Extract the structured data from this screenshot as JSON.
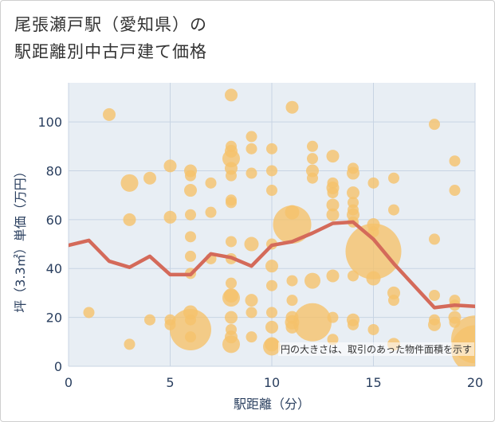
{
  "title_line1": "尾張瀬戸駅（愛知県）の",
  "title_line2": "駅距離別中古戸建て価格",
  "note": "円の大きさは、取引のあった物件面積を示す",
  "colors": {
    "bubble": "#f5c26b",
    "line": "#d46a5a",
    "grid": "#c8d4e3",
    "plot_bg": "#e8eef4"
  },
  "chart_data": {
    "type": "scatter",
    "xlabel": "駅距離（分）",
    "ylabel": "坪（3.3㎡）単価（万円）",
    "xlim": [
      0,
      20
    ],
    "ylim": [
      0,
      116
    ],
    "xticks": [
      0,
      5,
      10,
      15,
      20
    ],
    "yticks": [
      0,
      20,
      40,
      60,
      80,
      100
    ],
    "xtick_labels": [
      "0",
      "5",
      "10",
      "15",
      "20"
    ],
    "ytick_labels": [
      "0",
      "20",
      "40",
      "60",
      "80",
      "100"
    ],
    "points": [
      {
        "x": 1,
        "y": 22,
        "s": 7
      },
      {
        "x": 2,
        "y": 103,
        "s": 8
      },
      {
        "x": 3,
        "y": 75,
        "s": 11
      },
      {
        "x": 3,
        "y": 60,
        "s": 8
      },
      {
        "x": 3,
        "y": 9,
        "s": 7
      },
      {
        "x": 4,
        "y": 77,
        "s": 8
      },
      {
        "x": 4,
        "y": 19,
        "s": 7
      },
      {
        "x": 5,
        "y": 82,
        "s": 8
      },
      {
        "x": 5,
        "y": 61,
        "s": 8
      },
      {
        "x": 5,
        "y": 19,
        "s": 7
      },
      {
        "x": 5,
        "y": 17,
        "s": 7
      },
      {
        "x": 6,
        "y": 80,
        "s": 8
      },
      {
        "x": 6,
        "y": 78,
        "s": 7
      },
      {
        "x": 6,
        "y": 72,
        "s": 8
      },
      {
        "x": 6,
        "y": 62,
        "s": 7
      },
      {
        "x": 6,
        "y": 53,
        "s": 7
      },
      {
        "x": 6,
        "y": 45,
        "s": 7
      },
      {
        "x": 6,
        "y": 38,
        "s": 7
      },
      {
        "x": 6,
        "y": 22,
        "s": 9
      },
      {
        "x": 6,
        "y": 19,
        "s": 7
      },
      {
        "x": 6,
        "y": 15,
        "s": 26
      },
      {
        "x": 6,
        "y": 12,
        "s": 7
      },
      {
        "x": 7,
        "y": 75,
        "s": 7
      },
      {
        "x": 7,
        "y": 63,
        "s": 7
      },
      {
        "x": 7,
        "y": 44,
        "s": 7
      },
      {
        "x": 8,
        "y": 111,
        "s": 8
      },
      {
        "x": 8,
        "y": 90,
        "s": 7
      },
      {
        "x": 8,
        "y": 88,
        "s": 8
      },
      {
        "x": 8,
        "y": 85,
        "s": 11
      },
      {
        "x": 8,
        "y": 81,
        "s": 8
      },
      {
        "x": 8,
        "y": 78,
        "s": 7
      },
      {
        "x": 8,
        "y": 68,
        "s": 7
      },
      {
        "x": 8,
        "y": 67,
        "s": 7
      },
      {
        "x": 8,
        "y": 51,
        "s": 7
      },
      {
        "x": 8,
        "y": 44,
        "s": 7
      },
      {
        "x": 8,
        "y": 34,
        "s": 7
      },
      {
        "x": 8,
        "y": 29,
        "s": 9
      },
      {
        "x": 8,
        "y": 28,
        "s": 11
      },
      {
        "x": 8,
        "y": 20,
        "s": 8
      },
      {
        "x": 8,
        "y": 15,
        "s": 7
      },
      {
        "x": 8,
        "y": 12,
        "s": 8
      },
      {
        "x": 8,
        "y": 9,
        "s": 11
      },
      {
        "x": 9,
        "y": 94,
        "s": 7
      },
      {
        "x": 9,
        "y": 89,
        "s": 7
      },
      {
        "x": 9,
        "y": 79,
        "s": 7
      },
      {
        "x": 9,
        "y": 50,
        "s": 9
      },
      {
        "x": 9,
        "y": 27,
        "s": 8
      },
      {
        "x": 9,
        "y": 22,
        "s": 7
      },
      {
        "x": 9,
        "y": 12,
        "s": 7
      },
      {
        "x": 10,
        "y": 89,
        "s": 7
      },
      {
        "x": 10,
        "y": 80,
        "s": 7
      },
      {
        "x": 10,
        "y": 72,
        "s": 7
      },
      {
        "x": 10,
        "y": 50,
        "s": 7
      },
      {
        "x": 10,
        "y": 41,
        "s": 8
      },
      {
        "x": 10,
        "y": 33,
        "s": 7
      },
      {
        "x": 10,
        "y": 22,
        "s": 7
      },
      {
        "x": 10,
        "y": 16,
        "s": 8
      },
      {
        "x": 10,
        "y": 9,
        "s": 9
      },
      {
        "x": 10,
        "y": 8,
        "s": 11
      },
      {
        "x": 11,
        "y": 106,
        "s": 8
      },
      {
        "x": 11,
        "y": 63,
        "s": 9
      },
      {
        "x": 11,
        "y": 58,
        "s": 24
      },
      {
        "x": 11,
        "y": 35,
        "s": 7
      },
      {
        "x": 11,
        "y": 27,
        "s": 7
      },
      {
        "x": 11,
        "y": 20,
        "s": 8
      },
      {
        "x": 11,
        "y": 18,
        "s": 9
      },
      {
        "x": 11,
        "y": 16,
        "s": 8
      },
      {
        "x": 12,
        "y": 90,
        "s": 7
      },
      {
        "x": 12,
        "y": 85,
        "s": 7
      },
      {
        "x": 12,
        "y": 80,
        "s": 8
      },
      {
        "x": 12,
        "y": 77,
        "s": 7
      },
      {
        "x": 12,
        "y": 35,
        "s": 10
      },
      {
        "x": 12,
        "y": 18,
        "s": 24
      },
      {
        "x": 13,
        "y": 86,
        "s": 8
      },
      {
        "x": 13,
        "y": 75,
        "s": 7
      },
      {
        "x": 13,
        "y": 73,
        "s": 8
      },
      {
        "x": 13,
        "y": 71,
        "s": 7
      },
      {
        "x": 13,
        "y": 66,
        "s": 8
      },
      {
        "x": 13,
        "y": 62,
        "s": 8
      },
      {
        "x": 13,
        "y": 37,
        "s": 8
      },
      {
        "x": 13,
        "y": 20,
        "s": 7
      },
      {
        "x": 13,
        "y": 11,
        "s": 7
      },
      {
        "x": 14,
        "y": 81,
        "s": 7
      },
      {
        "x": 14,
        "y": 79,
        "s": 8
      },
      {
        "x": 14,
        "y": 71,
        "s": 8
      },
      {
        "x": 14,
        "y": 67,
        "s": 7
      },
      {
        "x": 14,
        "y": 64,
        "s": 7
      },
      {
        "x": 14,
        "y": 62,
        "s": 8
      },
      {
        "x": 14,
        "y": 59,
        "s": 7
      },
      {
        "x": 14,
        "y": 37,
        "s": 7
      },
      {
        "x": 14,
        "y": 19,
        "s": 8
      },
      {
        "x": 14,
        "y": 17,
        "s": 7
      },
      {
        "x": 15,
        "y": 75,
        "s": 7
      },
      {
        "x": 15,
        "y": 58,
        "s": 8
      },
      {
        "x": 15,
        "y": 55,
        "s": 7
      },
      {
        "x": 15,
        "y": 47,
        "s": 35
      },
      {
        "x": 15,
        "y": 36,
        "s": 9
      },
      {
        "x": 15,
        "y": 15,
        "s": 7
      },
      {
        "x": 16,
        "y": 77,
        "s": 7
      },
      {
        "x": 16,
        "y": 64,
        "s": 7
      },
      {
        "x": 16,
        "y": 30,
        "s": 8
      },
      {
        "x": 16,
        "y": 27,
        "s": 7
      },
      {
        "x": 16,
        "y": 9,
        "s": 8
      },
      {
        "x": 18,
        "y": 99,
        "s": 7
      },
      {
        "x": 18,
        "y": 52,
        "s": 7
      },
      {
        "x": 18,
        "y": 29,
        "s": 7
      },
      {
        "x": 18,
        "y": 19,
        "s": 7
      },
      {
        "x": 18,
        "y": 17,
        "s": 8
      },
      {
        "x": 19,
        "y": 84,
        "s": 7
      },
      {
        "x": 19,
        "y": 72,
        "s": 7
      },
      {
        "x": 19,
        "y": 27,
        "s": 7
      },
      {
        "x": 19,
        "y": 25,
        "s": 7
      },
      {
        "x": 19,
        "y": 20,
        "s": 8
      },
      {
        "x": 19,
        "y": 18,
        "s": 7
      },
      {
        "x": 20,
        "y": 11,
        "s": 30
      },
      {
        "x": 20,
        "y": 7,
        "s": 30
      }
    ],
    "series": [
      {
        "name": "average",
        "x": [
          0,
          1,
          2,
          3,
          4,
          5,
          6,
          7,
          8,
          9,
          10,
          11,
          12,
          13,
          14,
          15,
          16,
          17,
          18,
          19,
          20
        ],
        "values": [
          49.5,
          51.5,
          43,
          40.5,
          45,
          37.5,
          37.5,
          46,
          44.5,
          41,
          49.5,
          51,
          54.5,
          58.5,
          59,
          52,
          42,
          33,
          24,
          25,
          24.5
        ]
      }
    ]
  }
}
